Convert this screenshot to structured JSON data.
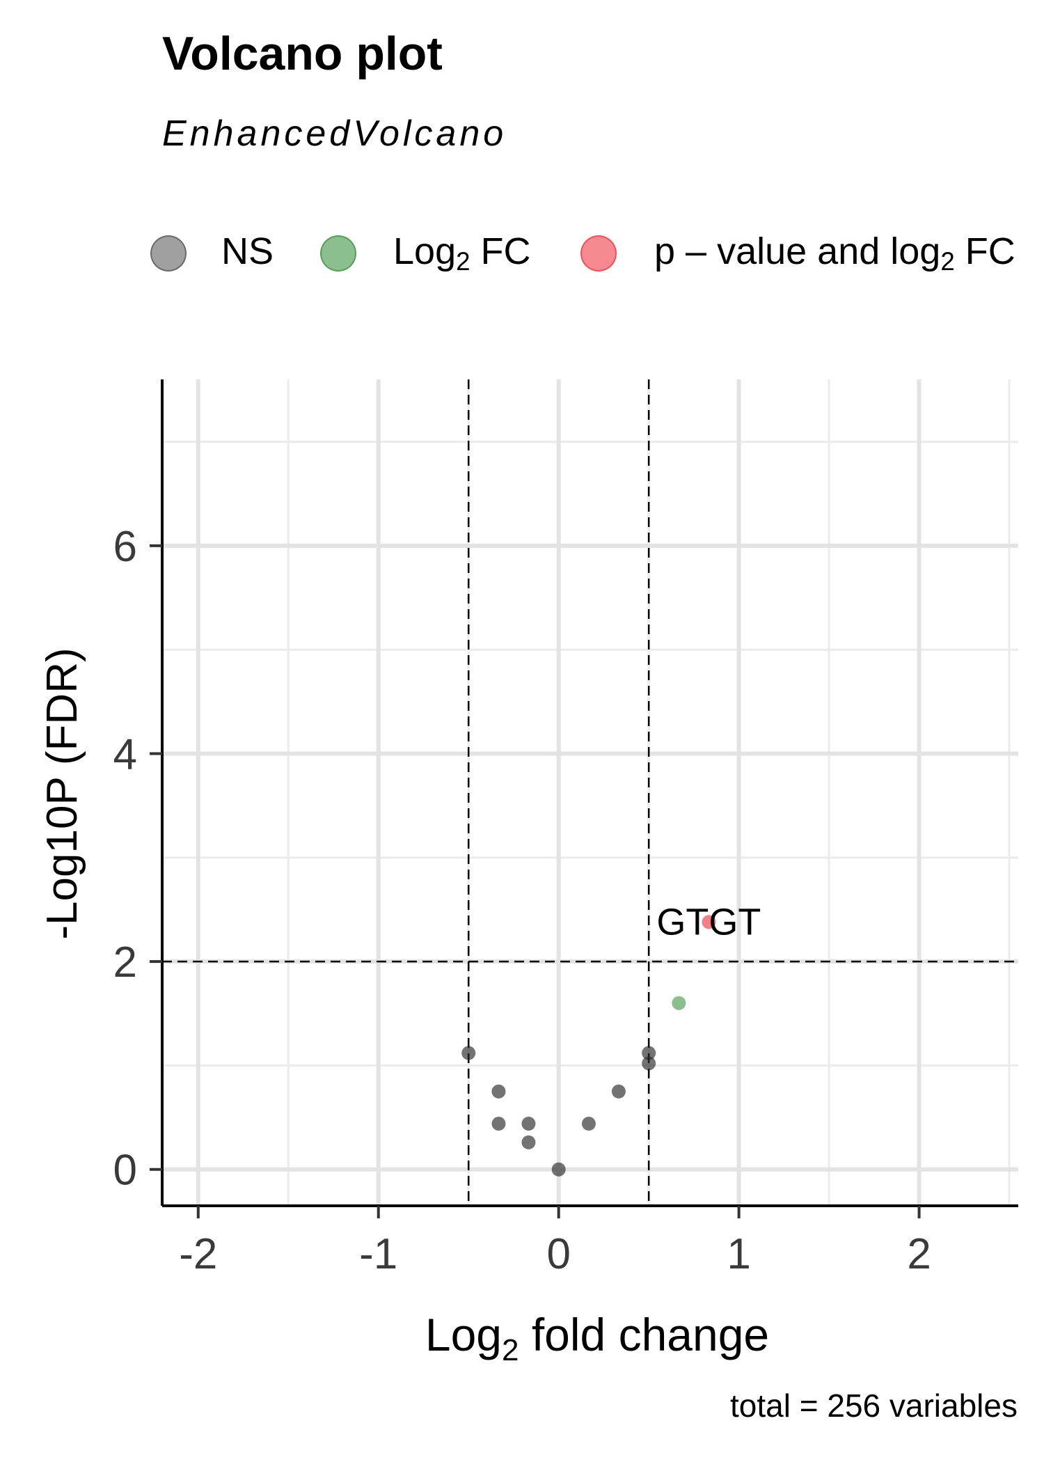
{
  "title": "Volcano plot",
  "subtitle": "EnhancedVolcano",
  "caption": "total = 256 variables",
  "legend": [
    {
      "label": "NS",
      "color": "#606060"
    },
    {
      "label_main": "Log",
      "label_sub": "2",
      "label_tail": " FC",
      "color": "#2e8b34"
    },
    {
      "label": "p – value and log",
      "label_sub": "2",
      "label_tail": " FC",
      "color": "#ee2a35"
    }
  ],
  "chart_data": {
    "type": "scatter",
    "title": "Volcano plot",
    "subtitle": "EnhancedVolcano",
    "xlabel_main": "Log",
    "xlabel_sub": "2",
    "xlabel_tail": " fold change",
    "ylabel": "-Log10P (FDR)",
    "xlim": [
      -2.2,
      2.55
    ],
    "ylim": [
      -0.35,
      7.6
    ],
    "xticks": [
      -2,
      -1,
      0,
      1,
      2
    ],
    "xtick_labels": [
      "-2",
      "-1",
      "0",
      "1",
      "2"
    ],
    "yticks": [
      0,
      2,
      4,
      6
    ],
    "ytick_labels": [
      "0",
      "2",
      "4",
      "6"
    ],
    "cutoffs": {
      "fc": 0.5,
      "p_log10": 2
    },
    "grid": true,
    "legend_position": "top",
    "points": [
      {
        "x": -0.5,
        "y": 1.12,
        "group": "NS"
      },
      {
        "x": -0.333,
        "y": 0.75,
        "group": "NS"
      },
      {
        "x": -0.333,
        "y": 0.44,
        "group": "NS"
      },
      {
        "x": -0.167,
        "y": 0.44,
        "group": "NS"
      },
      {
        "x": -0.167,
        "y": 0.26,
        "group": "NS"
      },
      {
        "x": 0.0,
        "y": 0.0,
        "group": "NS"
      },
      {
        "x": 0.167,
        "y": 0.44,
        "group": "NS"
      },
      {
        "x": 0.333,
        "y": 0.75,
        "group": "NS"
      },
      {
        "x": 0.5,
        "y": 1.12,
        "group": "NS"
      },
      {
        "x": 0.5,
        "y": 1.02,
        "group": "NS"
      },
      {
        "x": 0.667,
        "y": 1.6,
        "group": "Log2 FC"
      },
      {
        "x": 0.833,
        "y": 2.38,
        "group": "p-value and log2 FC",
        "label": "GTGT"
      }
    ]
  }
}
